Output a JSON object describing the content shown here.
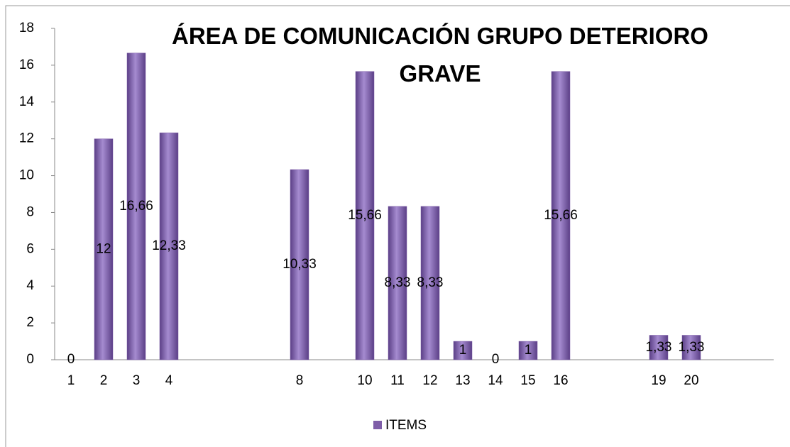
{
  "chart_data": {
    "type": "bar",
    "title": "ÁREA DE COMUNICACIÓN GRUPO DETERIORO GRAVE",
    "categories": [
      "1",
      "2",
      "3",
      "4",
      null,
      null,
      null,
      "8",
      null,
      "10",
      "11",
      "12",
      "13",
      "14",
      "15",
      "16",
      null,
      null,
      "19",
      "20"
    ],
    "series": [
      {
        "name": "ITEMS",
        "color": "#7e5da8",
        "values": [
          0,
          12,
          16.66,
          12.33,
          null,
          null,
          null,
          10.33,
          null,
          15.66,
          8.33,
          8.33,
          1,
          0,
          1,
          15.66,
          null,
          null,
          1.33,
          1.33
        ],
        "value_labels": [
          "0",
          "12",
          "16,66",
          "12,33",
          null,
          null,
          null,
          "10,33",
          null,
          "15,66",
          "8,33",
          "8,33",
          "1",
          "0",
          "1",
          "15,66",
          null,
          null,
          "1,33",
          "1,33"
        ]
      }
    ],
    "ylim": [
      0,
      18
    ],
    "yticks": [
      0,
      2,
      4,
      6,
      8,
      10,
      12,
      14,
      16,
      18
    ],
    "legend": "bottom"
  }
}
